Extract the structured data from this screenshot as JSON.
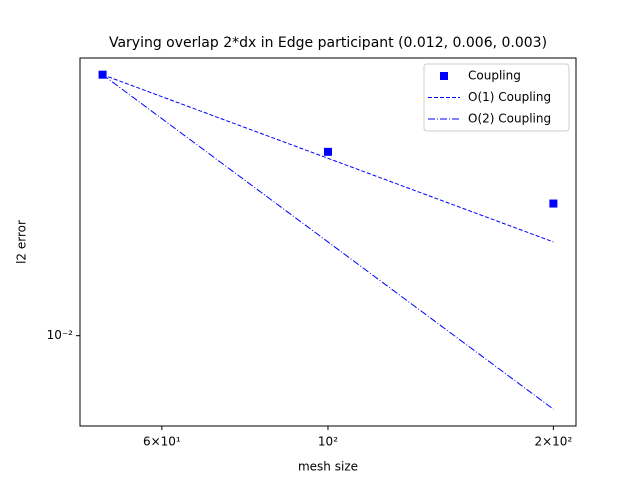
{
  "chart_data": {
    "type": "line",
    "title": "Varying overlap 2*dx in Edge participant (0.012, 0.006, 0.003)",
    "x_label": "mesh size",
    "y_label": "l2 error",
    "x": [
      50,
      100,
      200
    ],
    "series": [
      {
        "name": "Coupling",
        "color": "#0000ff",
        "style": "marker",
        "values": [
          0.087,
          0.0459,
          0.0299
        ]
      },
      {
        "name": "O(1) Coupling",
        "color": "#0000ff",
        "style": "dashed",
        "values": [
          0.087,
          0.0435,
          0.02175
        ]
      },
      {
        "name": "O(2) Coupling",
        "color": "#0000ff",
        "style": "dashdot",
        "values": [
          0.087,
          0.02175,
          0.0054375
        ]
      }
    ],
    "xscale": "log",
    "yscale": "log",
    "xlim": [
      46.65,
      214.4
    ],
    "ylim": [
      0.00473,
      0.0999
    ],
    "xticks": [
      {
        "value": 60,
        "label": "6×10¹"
      },
      {
        "value": 100,
        "label": "10²"
      },
      {
        "value": 200,
        "label": "2×10²"
      }
    ],
    "yticks": [
      {
        "value": 0.01,
        "label": "10⁻²"
      }
    ],
    "legend": "upper right"
  }
}
